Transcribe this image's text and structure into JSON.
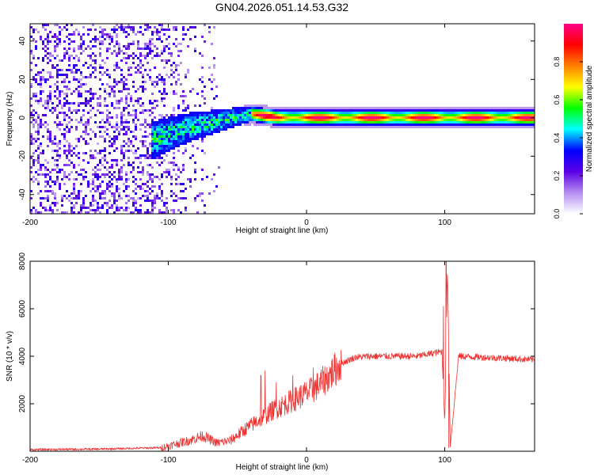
{
  "figure_title": "GN04.2026.051.14.53.G32",
  "chart_data": [
    {
      "type": "heatmap",
      "title": "GN04.2026.051.14.53.G32",
      "xlabel": "Height of straight line (km)",
      "ylabel": "Frequency (Hz)",
      "xlim": [
        -200,
        165
      ],
      "ylim": [
        -50,
        49
      ],
      "xticks": [
        -200,
        -100,
        0,
        100
      ],
      "yticks": [
        -40,
        -20,
        0,
        20,
        40
      ],
      "colorbar": {
        "label": "Normalized spectral amplitude",
        "range": [
          0.0,
          1.0
        ],
        "ticks": [
          "0.0",
          "0.2",
          "0.4",
          "0.6",
          "0.8"
        ],
        "tick_values": [
          0.0,
          0.2,
          0.4,
          0.6,
          0.8
        ],
        "colors": [
          "#ffffff",
          "#b58cf0",
          "#5b00e6",
          "#0000ff",
          "#00ffff",
          "#00ff00",
          "#ffff00",
          "#ff8000",
          "#ff0000",
          "#ff0088"
        ]
      },
      "features": {
        "noise_region_km": [
          -200,
          -60
        ],
        "noise_fade_km": [
          -110,
          -60
        ],
        "signal_start_km": -112,
        "carrier_frequency_hz": 0,
        "signal_drift": {
          "x": [
            -112,
            -90,
            -60,
            -40
          ],
          "y": [
            -12,
            -6,
            -1,
            2
          ]
        },
        "signal_halfwidth_hz": 4,
        "anomaly_km": 92
      }
    },
    {
      "type": "line",
      "xlabel": "Height of straight line (km)",
      "ylabel": "SNR (10 * v/v)",
      "xlim": [
        -200,
        165
      ],
      "ylim": [
        0,
        8000
      ],
      "xticks": [
        -200,
        -100,
        0,
        100
      ],
      "yticks": [
        2000,
        4000,
        6000,
        8000
      ],
      "series": [
        {
          "name": "SNR",
          "color": "#ee3333",
          "x": [
            -200,
            -150,
            -105,
            -95,
            -85,
            -75,
            -65,
            -55,
            -45,
            -35,
            -25,
            -15,
            -5,
            5,
            15,
            25,
            35,
            45,
            60,
            80,
            98,
            100,
            102,
            104,
            110,
            130,
            150,
            165
          ],
          "y": [
            70,
            90,
            150,
            300,
            450,
            650,
            350,
            450,
            900,
            1300,
            1700,
            2000,
            2300,
            2600,
            3100,
            3700,
            3950,
            4000,
            4000,
            4000,
            4200,
            1200,
            7800,
            200,
            4000,
            3950,
            3900,
            3850
          ],
          "spikes": [
            {
              "x": -33,
              "y": 3200
            },
            {
              "x": -30,
              "y": 3400
            },
            {
              "x": -22,
              "y": 2900
            },
            {
              "x": -10,
              "y": 3200
            },
            {
              "x": 5,
              "y": 3500
            },
            {
              "x": 12,
              "y": 3300
            },
            {
              "x": 99,
              "y": 6100
            },
            {
              "x": 101,
              "y": 8000
            },
            {
              "x": 103,
              "y": 150
            }
          ]
        }
      ]
    }
  ]
}
